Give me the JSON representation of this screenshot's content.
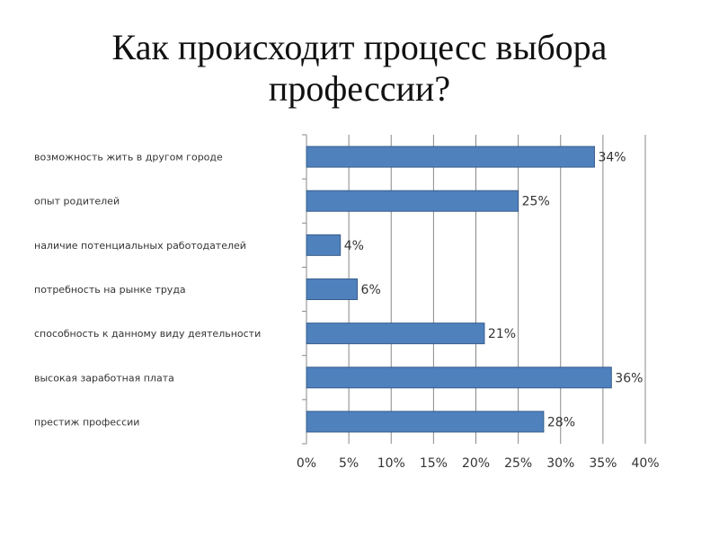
{
  "title_line1": "Как происходит процесс выбора",
  "title_line2": "профессии?",
  "colors": {
    "bar_fill": "#4F81BD",
    "bar_stroke": "#385D8A",
    "grid": "#888888",
    "axis": "#888888"
  },
  "chart_data": {
    "type": "bar",
    "orientation": "horizontal",
    "categories": [
      "возможность жить в другом городе",
      "опыт родителей",
      "наличие потенциальных работодателей",
      "потребность на рынке труда",
      "способность к данному виду деятельности",
      "высокая заработная плата",
      "престиж профессии"
    ],
    "values": [
      34,
      25,
      4,
      6,
      21,
      36,
      28
    ],
    "data_labels": [
      "34%",
      "25%",
      "4%",
      "6%",
      "21%",
      "36%",
      "28%"
    ],
    "xlim": [
      0,
      40
    ],
    "xticks": [
      0,
      5,
      10,
      15,
      20,
      25,
      30,
      35,
      40
    ],
    "xtick_labels": [
      "0%",
      "5%",
      "10%",
      "15%",
      "20%",
      "25%",
      "30%",
      "35%",
      "40%"
    ],
    "grid": true,
    "legend": "none"
  }
}
